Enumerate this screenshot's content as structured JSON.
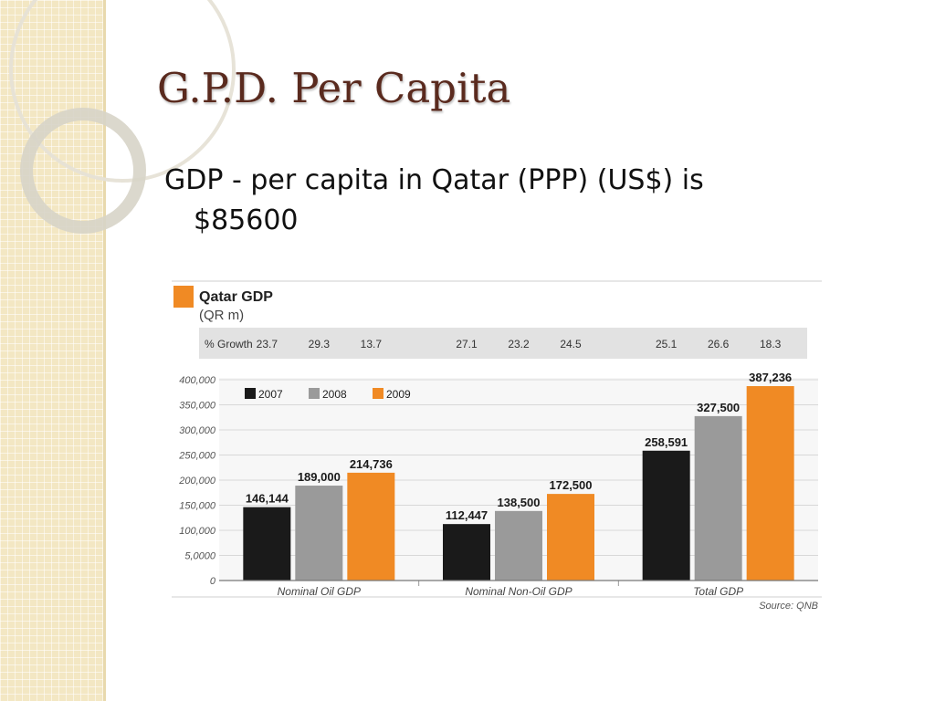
{
  "slide": {
    "title": "G.P.D. Per Capita",
    "body_line1": "GDP - per capita in Qatar (PPP) (US$) is",
    "body_line2": "$85600"
  },
  "chart_data": {
    "type": "bar",
    "title": "Qatar GDP",
    "subtitle": "(QR m)",
    "growth_label": "% Growth",
    "growth": [
      "23.7",
      "29.3",
      "13.7",
      "27.1",
      "23.2",
      "24.5",
      "25.1",
      "26.6",
      "18.3"
    ],
    "categories": [
      "Nominal Oil GDP",
      "Nominal Non-Oil GDP",
      "Total GDP"
    ],
    "series": [
      {
        "name": "2007",
        "color": "#1a1a1a",
        "values": [
          146144,
          112447,
          258591
        ],
        "labels": [
          "146,144",
          "112,447",
          "258,591"
        ]
      },
      {
        "name": "2008",
        "color": "#9a9a9a",
        "values": [
          189000,
          138500,
          327500
        ],
        "labels": [
          "189,000",
          "138,500",
          "327,500"
        ]
      },
      {
        "name": "2009",
        "color": "#f08a24",
        "values": [
          214736,
          172500,
          387236
        ],
        "labels": [
          "214,736",
          "172,500",
          "387,236"
        ]
      }
    ],
    "y_ticks": [
      "400,000",
      "350,000",
      "300,000",
      "250,000",
      "200,000",
      "150,000",
      "100,000",
      "5,0000",
      "0"
    ],
    "ylim": [
      0,
      400000
    ],
    "legend_position": "top-left",
    "source": "Source: QNB"
  }
}
